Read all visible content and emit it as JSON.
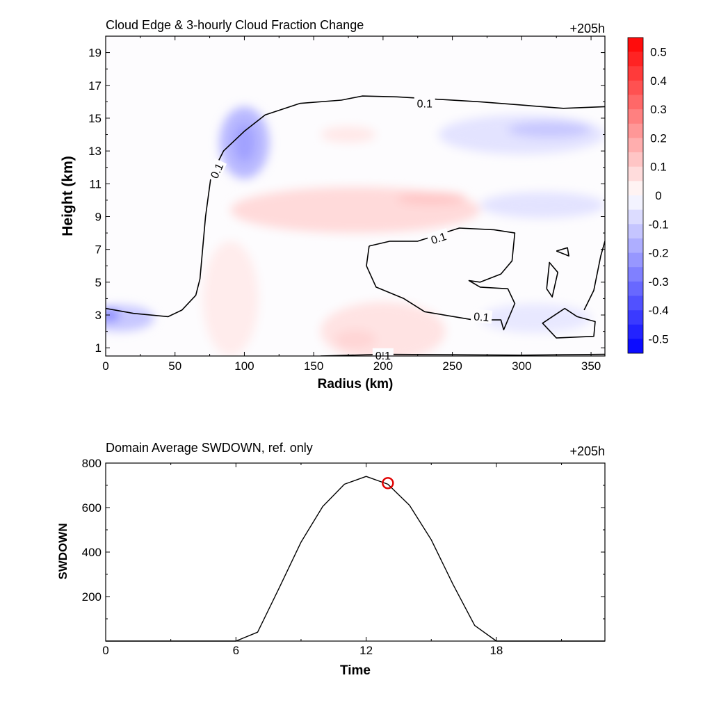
{
  "chart_data": [
    {
      "type": "heatmap",
      "title": "Cloud Edge & 3-hourly Cloud Fraction Change",
      "time_label": "+205h",
      "xlabel": "Radius (km)",
      "ylabel": "Height (km)",
      "xlim": [
        0,
        360
      ],
      "ylim": [
        0.5,
        20
      ],
      "x_ticks": [
        "0",
        "50",
        "100",
        "150",
        "200",
        "250",
        "300",
        "350"
      ],
      "y_ticks": [
        "1",
        "3",
        "5",
        "7",
        "9",
        "11",
        "13",
        "15",
        "17",
        "19"
      ],
      "colorbar": {
        "min": -0.55,
        "max": 0.55,
        "step": 0.05,
        "labels": [
          "0.5",
          "0.4",
          "0.3",
          "0.2",
          "0.1",
          "0",
          "-0.1",
          "-0.2",
          "-0.3",
          "-0.4",
          "-0.5"
        ],
        "negative_color": "#0000ff",
        "positive_color": "#ff0000",
        "zero_color": "#ffffff"
      },
      "anomalies": [
        {
          "x": 100,
          "y": 13.5,
          "rx": 18,
          "ry": 2.2,
          "value": -0.15
        },
        {
          "x": 100,
          "y": 13.5,
          "rx": 8,
          "ry": 1.2,
          "value": -0.2
        },
        {
          "x": 10,
          "y": 2.8,
          "rx": 25,
          "ry": 0.8,
          "value": -0.12
        },
        {
          "x": 3,
          "y": 3.0,
          "rx": 7,
          "ry": 0.4,
          "value": -0.25
        },
        {
          "x": 180,
          "y": 9.4,
          "rx": 90,
          "ry": 1.4,
          "value": 0.08
        },
        {
          "x": 235,
          "y": 10.1,
          "rx": 25,
          "ry": 0.4,
          "value": 0.12
        },
        {
          "x": 200,
          "y": 2.0,
          "rx": 45,
          "ry": 1.8,
          "value": 0.06
        },
        {
          "x": 180,
          "y": 1.5,
          "rx": 15,
          "ry": 0.6,
          "value": 0.09
        },
        {
          "x": 300,
          "y": 14.0,
          "rx": 60,
          "ry": 1.2,
          "value": -0.06
        },
        {
          "x": 320,
          "y": 14.3,
          "rx": 30,
          "ry": 0.5,
          "value": -0.12
        },
        {
          "x": 315,
          "y": 9.7,
          "rx": 45,
          "ry": 0.8,
          "value": -0.06
        },
        {
          "x": 310,
          "y": 2.8,
          "rx": 40,
          "ry": 0.9,
          "value": -0.05
        },
        {
          "x": 175,
          "y": 14.0,
          "rx": 20,
          "ry": 0.5,
          "value": 0.05
        },
        {
          "x": 90,
          "y": 4.0,
          "rx": 20,
          "ry": 3.5,
          "value": 0.04
        }
      ],
      "contour_level": "0.1",
      "contours": [
        [
          [
            0,
            3.4
          ],
          [
            20,
            3.1
          ],
          [
            45,
            2.9
          ],
          [
            55,
            3.3
          ],
          [
            65,
            4.2
          ],
          [
            68,
            5.2
          ],
          [
            72,
            9.0
          ],
          [
            76,
            11.5
          ],
          [
            85,
            13.0
          ],
          [
            100,
            14.2
          ],
          [
            115,
            15.2
          ],
          [
            140,
            15.9
          ],
          [
            170,
            16.1
          ],
          [
            185,
            16.35
          ],
          [
            210,
            16.3
          ],
          [
            270,
            16.0
          ],
          [
            300,
            15.8
          ],
          [
            330,
            15.6
          ],
          [
            360,
            15.7
          ]
        ],
        [
          [
            190,
            7.2
          ],
          [
            205,
            7.5
          ],
          [
            225,
            7.5
          ],
          [
            255,
            8.3
          ],
          [
            280,
            8.2
          ],
          [
            295,
            8.0
          ],
          [
            293,
            6.3
          ],
          [
            285,
            5.5
          ],
          [
            270,
            5.0
          ],
          [
            262,
            5.1
          ],
          [
            270,
            4.7
          ],
          [
            290,
            4.6
          ],
          [
            295,
            3.7
          ],
          [
            287,
            2.1
          ],
          [
            285,
            2.7
          ],
          [
            265,
            2.7
          ],
          [
            230,
            3.2
          ],
          [
            215,
            4.0
          ],
          [
            195,
            4.7
          ],
          [
            188,
            6.0
          ],
          [
            190,
            7.2
          ]
        ],
        [
          [
            331,
            3.4
          ],
          [
            340,
            2.9
          ],
          [
            353,
            2.6
          ],
          [
            352,
            1.7
          ],
          [
            325,
            1.6
          ],
          [
            315,
            2.5
          ],
          [
            331,
            3.4
          ]
        ],
        [
          [
            325,
            6.9
          ],
          [
            334,
            6.6
          ],
          [
            333,
            7.1
          ],
          [
            325,
            6.9
          ]
        ],
        [
          [
            318,
            4.6
          ],
          [
            322,
            4.1
          ],
          [
            326,
            5.6
          ],
          [
            320,
            6.2
          ],
          [
            318,
            4.6
          ]
        ],
        [
          [
            345,
            3.3
          ],
          [
            352,
            4.5
          ],
          [
            357,
            6.6
          ],
          [
            360,
            7.5
          ]
        ],
        [
          [
            155,
            0.5
          ],
          [
            200,
            0.6
          ],
          [
            300,
            0.55
          ],
          [
            360,
            0.6
          ]
        ]
      ],
      "contour_labels": [
        {
          "x": 80,
          "y": 11.8,
          "angle": -65
        },
        {
          "x": 230,
          "y": 15.9,
          "angle": 0
        },
        {
          "x": 240,
          "y": 7.7,
          "angle": -18
        },
        {
          "x": 271,
          "y": 2.9,
          "angle": 5
        },
        {
          "x": 200,
          "y": 0.55,
          "angle": 0
        }
      ]
    },
    {
      "type": "line",
      "title": "Domain Average SWDOWN, ref. only",
      "time_label": "+205h",
      "xlabel": "Time",
      "ylabel": "SWDOWN",
      "xlim": [
        0,
        23
      ],
      "ylim": [
        0,
        800
      ],
      "x_ticks": [
        "0",
        "6",
        "12",
        "18"
      ],
      "y_ticks": [
        "200",
        "400",
        "600",
        "800"
      ],
      "x": [
        0,
        1,
        2,
        3,
        4,
        5,
        6,
        7,
        8,
        9,
        10,
        11,
        12,
        13,
        14,
        15,
        16,
        17,
        18,
        19,
        20,
        21,
        22,
        23
      ],
      "values": [
        0,
        0,
        0,
        0,
        0,
        0,
        0,
        40,
        240,
        445,
        605,
        705,
        740,
        705,
        610,
        455,
        255,
        70,
        0,
        0,
        0,
        0,
        0,
        0
      ],
      "marker": {
        "x": 13,
        "y": 710,
        "color": "#e00000"
      }
    }
  ]
}
